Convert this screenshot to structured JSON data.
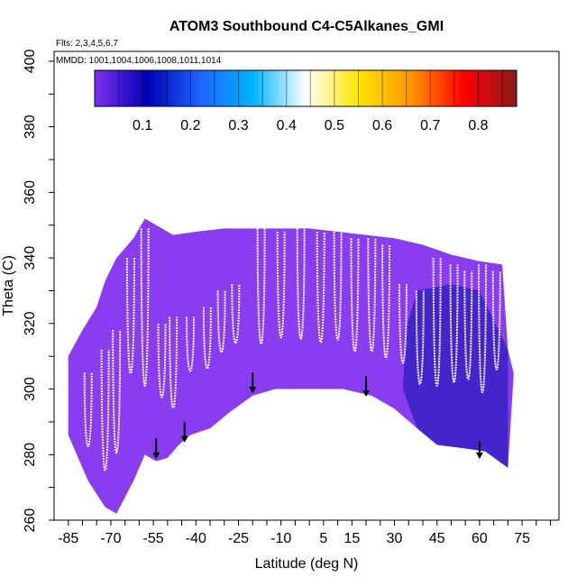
{
  "chart_data": {
    "type": "heatmap",
    "title": "ATOM3 Southbound C4-C5Alkanes_GMI",
    "flights_label": "Flts: 2,3,4,5,6,7",
    "mmdd_label": "MMDD: 1001,1004,1006,1008,1011,1014",
    "xlabel": "Latitude (deg N)",
    "ylabel": "Theta (C)",
    "xlim": [
      -90,
      88
    ],
    "ylim": [
      260,
      403
    ],
    "x_ticks": [
      -85,
      -70,
      -55,
      -40,
      -25,
      -10,
      5,
      15,
      30,
      45,
      60,
      75
    ],
    "x_ticks_text": [
      "-85",
      "-70",
      "-55",
      "-40",
      "-25",
      "-10",
      "5",
      "15",
      "30",
      "45",
      "60",
      "75"
    ],
    "y_ticks": [
      260,
      280,
      300,
      320,
      340,
      360,
      380,
      400
    ],
    "y_ticks_text": [
      "260",
      "280",
      "300",
      "320",
      "340",
      "360",
      "380",
      "400"
    ],
    "colorbar": {
      "min": 0,
      "max": 0.88,
      "ticks": [
        0.1,
        0.2,
        0.3,
        0.4,
        0.5,
        0.6,
        0.7,
        0.8
      ],
      "ticks_text": [
        "0.1",
        "0.2",
        "0.3",
        "0.4",
        "0.5",
        "0.6",
        "0.7",
        "0.8"
      ],
      "colors": [
        "#7f2ff0",
        "#0000b4",
        "#1e64ff",
        "#00b4ff",
        "#ffffff",
        "#ffe600",
        "#ff9600",
        "#ff0000",
        "#8b1a1a"
      ]
    },
    "field_color_main": "#8a3cf0",
    "field_color_low": "#2a1fc0",
    "top_envelope": [
      [
        -85,
        310
      ],
      [
        -80,
        318
      ],
      [
        -75,
        325
      ],
      [
        -72,
        333
      ],
      [
        -68,
        340
      ],
      [
        -62,
        346
      ],
      [
        -58,
        352
      ],
      [
        -48,
        347
      ],
      [
        -40,
        348
      ],
      [
        -30,
        349
      ],
      [
        -20,
        349
      ],
      [
        -10,
        349
      ],
      [
        0,
        349
      ],
      [
        10,
        348
      ],
      [
        20,
        347
      ],
      [
        30,
        346
      ],
      [
        40,
        344
      ],
      [
        50,
        341
      ],
      [
        60,
        339
      ],
      [
        68,
        338
      ],
      [
        70,
        312
      ],
      [
        72,
        305
      ]
    ],
    "bottom_envelope": [
      [
        72,
        304
      ],
      [
        70,
        276
      ],
      [
        62,
        281
      ],
      [
        54,
        282
      ],
      [
        45,
        283
      ],
      [
        38,
        288
      ],
      [
        30,
        294
      ],
      [
        22,
        298
      ],
      [
        12,
        300
      ],
      [
        0,
        300
      ],
      [
        -12,
        300
      ],
      [
        -20,
        298
      ],
      [
        -28,
        293
      ],
      [
        -35,
        288
      ],
      [
        -42,
        286
      ],
      [
        -46,
        283
      ],
      [
        -50,
        279
      ],
      [
        -54,
        278
      ],
      [
        -58,
        280
      ],
      [
        -62,
        272
      ],
      [
        -68,
        262
      ],
      [
        -72,
        264
      ],
      [
        -78,
        272
      ],
      [
        -82,
        280
      ],
      [
        -85,
        286
      ]
    ],
    "flight_tracks": [
      {
        "lat": -78,
        "top": 305,
        "bottom": 275
      },
      {
        "lat": -72,
        "top": 312,
        "bottom": 263
      },
      {
        "lat": -68,
        "top": 318,
        "bottom": 268
      },
      {
        "lat": -63,
        "top": 340,
        "bottom": 293
      },
      {
        "lat": -58,
        "top": 349,
        "bottom": 285
      },
      {
        "lat": -52,
        "top": 320,
        "bottom": 290
      },
      {
        "lat": -48,
        "top": 322,
        "bottom": 285
      },
      {
        "lat": -42,
        "top": 322,
        "bottom": 300
      },
      {
        "lat": -36,
        "top": 325,
        "bottom": 300
      },
      {
        "lat": -31,
        "top": 330,
        "bottom": 305
      },
      {
        "lat": -26,
        "top": 332,
        "bottom": 308
      },
      {
        "lat": -17,
        "top": 349,
        "bottom": 302
      },
      {
        "lat": -10,
        "top": 348,
        "bottom": 305
      },
      {
        "lat": -3,
        "top": 349,
        "bottom": 304
      },
      {
        "lat": 4,
        "top": 348,
        "bottom": 303
      },
      {
        "lat": 10,
        "top": 348,
        "bottom": 304
      },
      {
        "lat": 16,
        "top": 346,
        "bottom": 300
      },
      {
        "lat": 22,
        "top": 346,
        "bottom": 300
      },
      {
        "lat": 27,
        "top": 344,
        "bottom": 298
      },
      {
        "lat": 33,
        "top": 332,
        "bottom": 300
      },
      {
        "lat": 39,
        "top": 330,
        "bottom": 292
      },
      {
        "lat": 45,
        "top": 340,
        "bottom": 288
      },
      {
        "lat": 51,
        "top": 338,
        "bottom": 290
      },
      {
        "lat": 56,
        "top": 336,
        "bottom": 292
      },
      {
        "lat": 61,
        "top": 338,
        "bottom": 286
      },
      {
        "lat": 66,
        "top": 336,
        "bottom": 296
      }
    ],
    "arrows": [
      {
        "lat": -54,
        "top": 285,
        "bottom": 279
      },
      {
        "lat": -44,
        "top": 290,
        "bottom": 284
      },
      {
        "lat": -20,
        "top": 305,
        "bottom": 299
      },
      {
        "lat": 20,
        "top": 304,
        "bottom": 298
      },
      {
        "lat": 60,
        "top": 284,
        "bottom": 279
      }
    ]
  }
}
